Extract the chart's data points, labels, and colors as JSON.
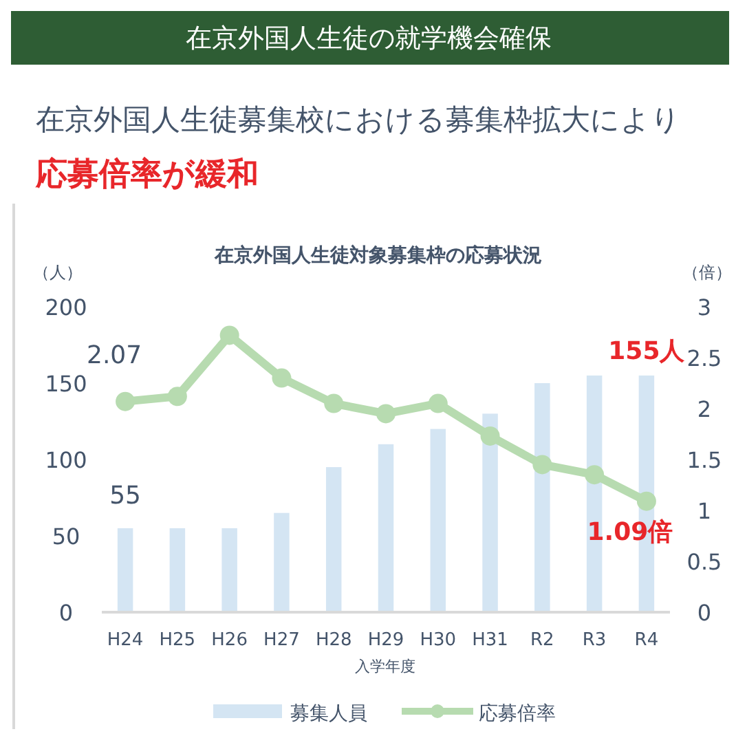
{
  "chart_data": {
    "type": "bar",
    "title": "在京外国人生徒対象募集枠の応募状況",
    "annotations": [
      "在京外国人生徒の就学機会確保",
      "在京外国人生徒募集校における募集枠拡大により",
      "応募倍率が緩和"
    ],
    "xlabel": "入学年度",
    "ylabel": "（人）",
    "y2label": "（倍）",
    "categories": [
      "H24",
      "H25",
      "H26",
      "H27",
      "H28",
      "H29",
      "H30",
      "H31",
      "R2",
      "R3",
      "R4"
    ],
    "series": [
      {
        "name": "募集人員",
        "color": "#d4e5f3",
        "values": [
          55,
          55,
          55,
          65,
          95,
          110,
          120,
          130,
          150,
          155,
          155
        ],
        "value_labels": [
          "55",
          null,
          null,
          null,
          null,
          null,
          null,
          null,
          null,
          null,
          "155人"
        ]
      },
      {
        "name": "応募倍率",
        "type": "line",
        "axis": "y2",
        "color": "#b7dbb0",
        "marker": "circle",
        "values": [
          2.07,
          2.12,
          2.72,
          2.3,
          2.05,
          1.95,
          2.05,
          1.73,
          1.45,
          1.35,
          1.09
        ],
        "value_labels": [
          "2.07",
          null,
          null,
          null,
          null,
          null,
          null,
          null,
          null,
          null,
          "1.09倍"
        ]
      }
    ],
    "ylim": [
      0,
      200
    ],
    "yticks": [
      0,
      50,
      100,
      150,
      200
    ],
    "y2lim": [
      0,
      3
    ],
    "y2ticks": [
      0,
      0.5,
      1,
      1.5,
      2,
      2.5,
      3
    ],
    "grid": false,
    "legend": "bottom"
  }
}
